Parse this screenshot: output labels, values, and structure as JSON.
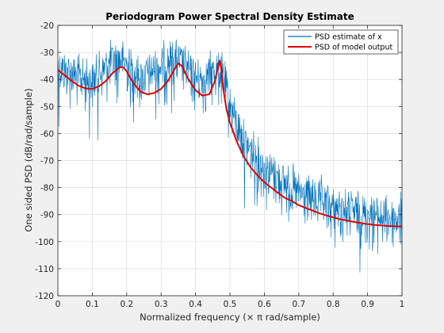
{
  "chart_data": {
    "type": "line",
    "title": "Periodogram Power Spectral Density Estimate",
    "xlabel": "Normalized frequency (× π rad/sample)",
    "ylabel": "One sided PSD (dB/rad/sample)",
    "xlim": [
      0,
      1
    ],
    "ylim": [
      -120,
      -20
    ],
    "xticks": [
      "0",
      "0.1",
      "0.2",
      "0.3",
      "0.4",
      "0.5",
      "0.6",
      "0.7",
      "0.8",
      "0.9",
      "1"
    ],
    "yticks": [
      "-20",
      "-30",
      "-40",
      "-50",
      "-60",
      "-70",
      "-80",
      "-90",
      "-100",
      "-110",
      "-120"
    ],
    "grid": true,
    "legend": "top-right",
    "series": [
      {
        "name": "PSD estimate of x",
        "color": "#0072bd",
        "style": "noisy periodogram around model curve",
        "x": [
          0,
          0.02,
          0.04,
          0.06,
          0.08,
          0.1,
          0.12,
          0.14,
          0.16,
          0.18,
          0.2,
          0.22,
          0.24,
          0.26,
          0.28,
          0.3,
          0.32,
          0.34,
          0.36,
          0.38,
          0.4,
          0.42,
          0.44,
          0.46,
          0.48,
          0.5,
          0.52,
          0.54,
          0.56,
          0.58,
          0.6,
          0.62,
          0.64,
          0.66,
          0.68,
          0.7,
          0.72,
          0.74,
          0.76,
          0.78,
          0.8,
          0.82,
          0.84,
          0.86,
          0.88,
          0.9,
          0.92,
          0.94,
          0.96,
          0.98,
          1.0
        ],
        "y": [
          -36,
          -37,
          -38,
          -40,
          -41,
          -41,
          -39,
          -36,
          -34,
          -33,
          -35,
          -38,
          -40,
          -39,
          -37,
          -36,
          -34,
          -33,
          -35,
          -38,
          -40,
          -41,
          -39,
          -37,
          -40,
          -50,
          -57,
          -63,
          -67,
          -70,
          -73,
          -75,
          -77,
          -79,
          -81,
          -83,
          -84,
          -85,
          -86,
          -87,
          -88,
          -89,
          -89,
          -90,
          -90,
          -91,
          -91,
          -92,
          -92,
          -92,
          -92
        ]
      },
      {
        "name": "PSD of model output",
        "color": "#e00000",
        "x": [
          0,
          0.02,
          0.04,
          0.06,
          0.08,
          0.1,
          0.12,
          0.14,
          0.16,
          0.18,
          0.19,
          0.2,
          0.22,
          0.24,
          0.26,
          0.28,
          0.3,
          0.32,
          0.34,
          0.35,
          0.36,
          0.38,
          0.4,
          0.42,
          0.44,
          0.455,
          0.465,
          0.47,
          0.475,
          0.48,
          0.49,
          0.5,
          0.52,
          0.54,
          0.56,
          0.58,
          0.6,
          0.62,
          0.64,
          0.66,
          0.68,
          0.7,
          0.72,
          0.74,
          0.76,
          0.78,
          0.8,
          0.82,
          0.84,
          0.86,
          0.88,
          0.9,
          0.92,
          0.94,
          0.96,
          0.98,
          1.0
        ],
        "y": [
          -36.5,
          -38.5,
          -40.5,
          -42.3,
          -43.3,
          -43.5,
          -42.5,
          -40.5,
          -37.5,
          -35.5,
          -35.5,
          -37,
          -41.5,
          -44.5,
          -45.5,
          -45,
          -43.5,
          -40.5,
          -36,
          -34,
          -35,
          -40,
          -44,
          -46,
          -45.5,
          -41,
          -36,
          -33,
          -36,
          -43,
          -51,
          -56,
          -63,
          -68.5,
          -72.5,
          -75.5,
          -78,
          -80,
          -82,
          -83.8,
          -85,
          -86.5,
          -87.5,
          -88.5,
          -89.5,
          -90.3,
          -91,
          -91.7,
          -92.2,
          -92.7,
          -93.1,
          -93.5,
          -93.8,
          -94,
          -94.2,
          -94.3,
          -94.4
        ]
      }
    ]
  }
}
